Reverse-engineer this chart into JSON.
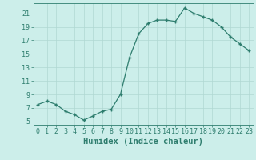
{
  "x": [
    0,
    1,
    2,
    3,
    4,
    5,
    6,
    7,
    8,
    9,
    10,
    11,
    12,
    13,
    14,
    15,
    16,
    17,
    18,
    19,
    20,
    21,
    22,
    23
  ],
  "y": [
    7.5,
    8.0,
    7.5,
    6.5,
    6.0,
    5.2,
    5.8,
    6.5,
    6.8,
    9.0,
    14.5,
    18.0,
    19.5,
    20.0,
    20.0,
    19.8,
    21.8,
    21.0,
    20.5,
    20.0,
    19.0,
    17.5,
    16.5,
    15.5
  ],
  "line_color": "#2e7d6e",
  "marker": "+",
  "bg_color": "#cceeea",
  "grid_color": "#b0d8d2",
  "xlabel": "Humidex (Indice chaleur)",
  "ylim": [
    4.5,
    22.5
  ],
  "xlim": [
    -0.5,
    23.5
  ],
  "yticks": [
    5,
    7,
    9,
    11,
    13,
    15,
    17,
    19,
    21
  ],
  "xtick_labels": [
    "0",
    "1",
    "2",
    "3",
    "4",
    "5",
    "6",
    "7",
    "8",
    "9",
    "10",
    "11",
    "12",
    "13",
    "14",
    "15",
    "16",
    "17",
    "18",
    "19",
    "20",
    "21",
    "22",
    "23"
  ],
  "axis_color": "#2e7d6e",
  "font_size": 6.0,
  "xlabel_fontsize": 7.5,
  "lw": 0.9,
  "markersize": 3.5,
  "markeredgewidth": 1.0
}
